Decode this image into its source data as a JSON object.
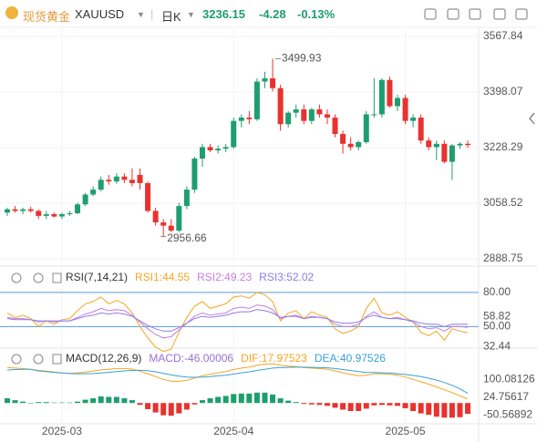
{
  "header": {
    "name": "现货黄金",
    "symbol": "XAUUSD",
    "period": "日K",
    "change": -4.28,
    "change_percent": "-0.13%"
  },
  "chart_data": [
    {
      "type": "candlestick",
      "up_color": "#1e9e6e",
      "down_color": "#e8322f",
      "grid": true,
      "categories": [
        null,
        null,
        null,
        null,
        null,
        null,
        null,
        "2025-03",
        null,
        null,
        null,
        null,
        null,
        null,
        null,
        null,
        null,
        null,
        null,
        null,
        null,
        null,
        null,
        null,
        null,
        null,
        null,
        null,
        null,
        "2025-04",
        null,
        null,
        null,
        null,
        null,
        null,
        null,
        null,
        null,
        null,
        null,
        null,
        null,
        null,
        null,
        null,
        null,
        null,
        null,
        null,
        null,
        "2025-05",
        null,
        null,
        null,
        null,
        null,
        null,
        null,
        null
      ],
      "open": [
        3030,
        3040,
        3035,
        3040,
        3035,
        3020,
        3025,
        3018,
        3025,
        3028,
        3055,
        3085,
        3100,
        3130,
        3125,
        3140,
        3130,
        3145,
        3120,
        3035,
        3000,
        2990,
        2975,
        3050,
        3100,
        3195,
        3230,
        3220,
        3225,
        3230,
        3310,
        3320,
        3315,
        3430,
        3440,
        3410,
        3300,
        3335,
        3345,
        3310,
        3345,
        3330,
        3320,
        3270,
        3240,
        3230,
        3245,
        3330,
        3330,
        3435,
        3355,
        3380,
        3310,
        3320,
        3250,
        3230,
        3240,
        3185,
        3235,
        3240
      ],
      "high": [
        3045,
        3050,
        3045,
        3048,
        3040,
        3035,
        3030,
        3030,
        3035,
        3060,
        3090,
        3110,
        3140,
        3145,
        3150,
        3150,
        3165,
        3165,
        3125,
        3045,
        3010,
        3010,
        3060,
        3110,
        3200,
        3240,
        3240,
        3235,
        3240,
        3320,
        3330,
        3340,
        3440,
        3460,
        3499.93,
        3420,
        3340,
        3360,
        3360,
        3350,
        3360,
        3345,
        3330,
        3280,
        3260,
        3250,
        3340,
        3440,
        3440,
        3445,
        3390,
        3390,
        3330,
        3330,
        3260,
        3250,
        3250,
        3240,
        3245,
        3250
      ],
      "low": [
        3020,
        3030,
        3025,
        3030,
        3010,
        3010,
        3015,
        3010,
        3020,
        3025,
        3050,
        3080,
        3095,
        3115,
        3118,
        3120,
        3110,
        3100,
        3030,
        2990,
        2956.66,
        2970,
        2970,
        3040,
        3090,
        3170,
        3215,
        3210,
        3215,
        3225,
        3290,
        3300,
        3310,
        3410,
        3400,
        3280,
        3290,
        3320,
        3300,
        3300,
        3320,
        3300,
        3260,
        3210,
        3220,
        3220,
        3240,
        3320,
        3320,
        3350,
        3340,
        3300,
        3290,
        3240,
        3220,
        3190,
        3180,
        3130,
        3225,
        3228
      ],
      "close": [
        3040,
        3035,
        3040,
        3035,
        3020,
        3025,
        3018,
        3025,
        3028,
        3055,
        3085,
        3100,
        3130,
        3125,
        3140,
        3130,
        3120,
        3120,
        3035,
        3000,
        2990,
        2975,
        3050,
        3100,
        3195,
        3230,
        3220,
        3225,
        3230,
        3310,
        3320,
        3315,
        3430,
        3440,
        3410,
        3300,
        3335,
        3345,
        3310,
        3345,
        3330,
        3320,
        3270,
        3240,
        3230,
        3245,
        3330,
        3330,
        3435,
        3355,
        3380,
        3310,
        3320,
        3250,
        3230,
        3240,
        3185,
        3235,
        3240,
        3236.15
      ],
      "ylim": [
        2866.5,
        3590.1
      ],
      "yticks": [
        3567.84,
        3398.07,
        3228.29,
        3058.52,
        2888.75
      ]
    },
    {
      "type": "line",
      "title": "RSI(7,14,21)",
      "series": [
        {
          "name": "RSI1",
          "color": "#f5a623",
          "values": [
            62,
            58,
            60,
            57,
            50,
            55,
            52,
            56,
            57,
            64,
            70,
            72,
            76,
            70,
            73,
            70,
            62,
            50,
            40,
            32,
            28,
            30,
            45,
            58,
            68,
            72,
            66,
            68,
            70,
            76,
            77,
            75,
            80,
            78,
            72,
            55,
            62,
            64,
            57,
            63,
            60,
            58,
            48,
            44,
            46,
            50,
            66,
            75,
            62,
            60,
            63,
            58,
            54,
            45,
            42,
            46,
            38,
            48,
            46,
            44.55
          ]
        },
        {
          "name": "RSI2",
          "color": "#c77ddc",
          "values": [
            58,
            57,
            57,
            56,
            54,
            55,
            54,
            55,
            55,
            58,
            61,
            63,
            66,
            64,
            65,
            64,
            60,
            54,
            48,
            43,
            40,
            41,
            47,
            53,
            59,
            62,
            60,
            61,
            62,
            66,
            67,
            66,
            69,
            68,
            65,
            57,
            59,
            60,
            57,
            59,
            58,
            57,
            52,
            50,
            50,
            52,
            59,
            63,
            58,
            57,
            58,
            56,
            54,
            50,
            48,
            49,
            46,
            50,
            50,
            49.23
          ]
        },
        {
          "name": "RSI3",
          "color": "#8f7ee6",
          "values": [
            57,
            56,
            56,
            56,
            55,
            55,
            55,
            55,
            55,
            57,
            59,
            60,
            62,
            61,
            62,
            61,
            59,
            55,
            51,
            48,
            46,
            46,
            49,
            53,
            57,
            59,
            58,
            59,
            60,
            62,
            63,
            63,
            65,
            64,
            62,
            58,
            59,
            59,
            57,
            58,
            58,
            57,
            54,
            53,
            53,
            54,
            58,
            60,
            58,
            57,
            57,
            56,
            55,
            53,
            52,
            52,
            50,
            52,
            52,
            52.02
          ]
        }
      ],
      "ylim": [
        31,
        100
      ],
      "yticks": [
        58.82,
        32.44
      ],
      "levels": [
        {
          "value": 80,
          "label": "80.00"
        },
        {
          "value": 50,
          "label": "50.00"
        }
      ],
      "level_color": "#5b9bd5"
    },
    {
      "type": "macd",
      "title": "MACD(12,26,9)",
      "histogram": {
        "name": "MACD",
        "color": "#9b6fd6",
        "up_color": "#1e9e6e",
        "down_color": "#e8322f",
        "values": [
          20,
          12,
          6,
          0,
          4,
          4,
          2,
          2,
          2,
          6,
          14,
          20,
          28,
          26,
          26,
          20,
          12,
          -8,
          -26,
          -40,
          -52,
          -54,
          -44,
          -28,
          -6,
          12,
          20,
          26,
          30,
          38,
          40,
          40,
          44,
          44,
          36,
          20,
          10,
          4,
          -4,
          -6,
          -8,
          -12,
          -20,
          -28,
          -34,
          -34,
          -24,
          -10,
          -8,
          -10,
          -12,
          -22,
          -34,
          -44,
          -50,
          -58,
          -62,
          -62,
          -60,
          -46.00006
        ]
      },
      "series": [
        {
          "name": "DIF",
          "color": "#f5a623",
          "values": [
            150,
            148,
            146,
            143,
            138,
            135,
            131,
            128,
            126,
            127,
            131,
            135,
            141,
            143,
            146,
            146,
            144,
            135,
            124,
            112,
            100,
            92,
            92,
            96,
            106,
            116,
            122,
            128,
            133,
            142,
            148,
            152,
            160,
            165,
            166,
            160,
            156,
            154,
            150,
            148,
            146,
            143,
            136,
            128,
            121,
            116,
            118,
            124,
            124,
            122,
            118,
            110,
            100,
            90,
            80,
            68,
            56,
            44,
            30,
            17.97523
          ]
        },
        {
          "name": "DEA",
          "color": "#3aa0d8",
          "values": [
            140,
            142,
            143,
            143,
            136,
            133,
            130,
            127,
            125,
            124,
            124,
            125,
            127,
            130,
            133,
            136,
            138,
            139,
            137,
            132,
            126,
            119,
            114,
            110,
            109,
            110,
            112,
            115,
            118,
            123,
            128,
            132,
            138,
            143,
            148,
            150,
            151,
            152,
            152,
            151,
            150,
            149,
            146,
            142,
            138,
            133,
            130,
            129,
            128,
            127,
            124,
            121,
            117,
            112,
            105,
            97,
            87,
            75,
            60,
            40.97526
          ]
        }
      ],
      "ylim": [
        -88,
        221
      ],
      "yticks": [
        100.08126,
        24.75617,
        -50.56892
      ]
    }
  ]
}
